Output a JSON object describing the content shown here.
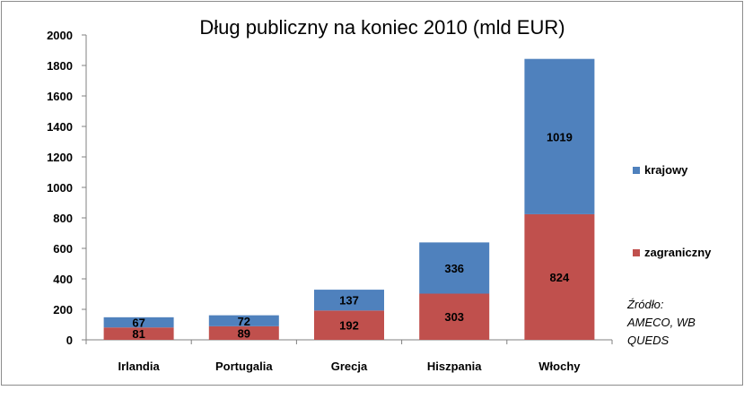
{
  "chart_data": {
    "type": "bar",
    "stacked": true,
    "title": "Dług publiczny na koniec 2010 (mld EUR)",
    "categories": [
      "Irlandia",
      "Portugalia",
      "Grecja",
      "Hiszpania",
      "Włochy"
    ],
    "series": [
      {
        "name": "zagraniczny",
        "color": "#c0504d",
        "values": [
          81,
          89,
          192,
          303,
          824
        ]
      },
      {
        "name": "krajowy",
        "color": "#4f81bd",
        "values": [
          67,
          72,
          137,
          336,
          1019
        ]
      }
    ],
    "ylim": [
      0,
      2000
    ],
    "yticks": [
      0,
      200,
      400,
      600,
      800,
      1000,
      1200,
      1400,
      1600,
      1800,
      2000
    ],
    "grid": false,
    "legend_position": "right"
  },
  "source_note": "Źródło:\n AMECO, WB\n QUEDS"
}
